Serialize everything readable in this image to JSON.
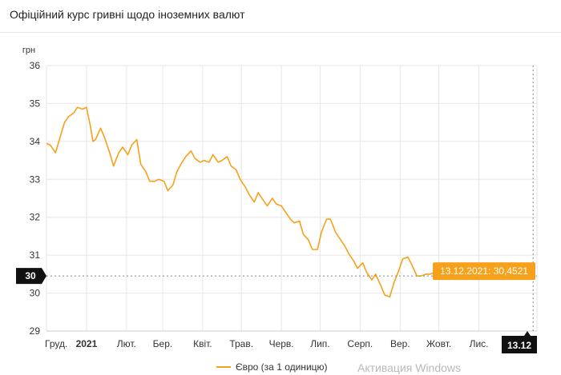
{
  "header": {
    "title": "Офіційний курс гривні щодо іноземних валют"
  },
  "watermark": "Активация Windows",
  "colors": {
    "series": "#f7a11a",
    "badge_dark": "#111111",
    "grid": "#e6e6e6"
  },
  "chart_data": {
    "type": "line",
    "title": "Офіційний курс гривні щодо іноземних валют",
    "ylabel": "грн",
    "ylim": [
      29,
      36
    ],
    "yticks": [
      "29",
      "30",
      "31",
      "32",
      "33",
      "34",
      "35",
      "36"
    ],
    "xticks": [
      "Груд.",
      "2021",
      "Лют.",
      "Бер.",
      "Квіт.",
      "Трав.",
      "Черв.",
      "Лип.",
      "Серп.",
      "Вер.",
      "Жовт.",
      "Лис."
    ],
    "bold_xticks": [
      "2021"
    ],
    "grid": true,
    "legend": {
      "position": "bottom",
      "entries": [
        "Євро (за 1 одиницю)"
      ]
    },
    "crosshair": {
      "y_value": 30.4521,
      "y_badge": "30",
      "x_badge": "13.12"
    },
    "tooltip": "13.12.2021: 30,4521",
    "series": [
      {
        "name": "Євро (за 1 одиницю)",
        "x": [
          "2020-12-01",
          "2020-12-04",
          "2020-12-08",
          "2020-12-11",
          "2020-12-15",
          "2020-12-18",
          "2020-12-22",
          "2020-12-25",
          "2020-12-29",
          "2021-01-01",
          "2021-01-04",
          "2021-01-06",
          "2021-01-08",
          "2021-01-12",
          "2021-01-15",
          "2021-01-19",
          "2021-01-22",
          "2021-01-26",
          "2021-01-29",
          "2021-02-02",
          "2021-02-05",
          "2021-02-09",
          "2021-02-12",
          "2021-02-16",
          "2021-02-19",
          "2021-02-23",
          "2021-02-26",
          "2021-03-02",
          "2021-03-05",
          "2021-03-09",
          "2021-03-12",
          "2021-03-16",
          "2021-03-19",
          "2021-03-23",
          "2021-03-26",
          "2021-03-30",
          "2021-04-02",
          "2021-04-06",
          "2021-04-09",
          "2021-04-13",
          "2021-04-16",
          "2021-04-20",
          "2021-04-23",
          "2021-04-27",
          "2021-04-30",
          "2021-05-04",
          "2021-05-07",
          "2021-05-11",
          "2021-05-14",
          "2021-05-18",
          "2021-05-21",
          "2021-05-25",
          "2021-05-28",
          "2021-06-01",
          "2021-06-04",
          "2021-06-08",
          "2021-06-11",
          "2021-06-15",
          "2021-06-18",
          "2021-06-22",
          "2021-06-25",
          "2021-06-29",
          "2021-07-02",
          "2021-07-06",
          "2021-07-09",
          "2021-07-13",
          "2021-07-16",
          "2021-07-20",
          "2021-07-23",
          "2021-07-27",
          "2021-07-30",
          "2021-08-03",
          "2021-08-06",
          "2021-08-10",
          "2021-08-13",
          "2021-08-17",
          "2021-08-20",
          "2021-08-24",
          "2021-08-27",
          "2021-08-31",
          "2021-09-03",
          "2021-09-07",
          "2021-09-10",
          "2021-09-14",
          "2021-09-17",
          "2021-09-21",
          "2021-09-24",
          "2021-09-28",
          "2021-10-01",
          "2021-10-05",
          "2021-10-08",
          "2021-10-12",
          "2021-10-15",
          "2021-10-19",
          "2021-10-22",
          "2021-10-26",
          "2021-10-29",
          "2021-11-02",
          "2021-11-05",
          "2021-11-09",
          "2021-11-12",
          "2021-11-16",
          "2021-11-19",
          "2021-11-23",
          "2021-11-26",
          "2021-11-30",
          "2021-12-03",
          "2021-12-07",
          "2021-12-10",
          "2021-12-13"
        ],
        "y": [
          33.95,
          33.9,
          33.7,
          34.05,
          34.5,
          34.65,
          34.75,
          34.9,
          34.85,
          34.9,
          34.4,
          34.0,
          34.05,
          34.35,
          34.1,
          33.7,
          33.35,
          33.7,
          33.85,
          33.65,
          33.9,
          34.05,
          33.4,
          33.2,
          32.95,
          32.95,
          33.0,
          32.95,
          32.7,
          32.85,
          33.2,
          33.45,
          33.6,
          33.75,
          33.55,
          33.45,
          33.5,
          33.45,
          33.65,
          33.45,
          33.5,
          33.6,
          33.35,
          33.25,
          33.0,
          32.8,
          32.6,
          32.4,
          32.65,
          32.45,
          32.3,
          32.5,
          32.35,
          32.3,
          32.15,
          31.95,
          31.85,
          31.9,
          31.55,
          31.4,
          31.15,
          31.15,
          31.6,
          31.95,
          31.95,
          31.6,
          31.45,
          31.25,
          31.05,
          30.85,
          30.65,
          30.8,
          30.55,
          30.35,
          30.5,
          30.2,
          29.95,
          29.9,
          30.25,
          30.6,
          30.9,
          30.95,
          30.75,
          30.45,
          30.45,
          30.5,
          30.5,
          30.55,
          30.6,
          30.8,
          30.6,
          30.45,
          30.4,
          30.5,
          30.45,
          30.45,
          30.5,
          30.45,
          30.45,
          30.5,
          30.4,
          30.45,
          30.5,
          30.45,
          30.45,
          30.5,
          30.45,
          30.5,
          30.45,
          30.4521
        ]
      }
    ]
  }
}
